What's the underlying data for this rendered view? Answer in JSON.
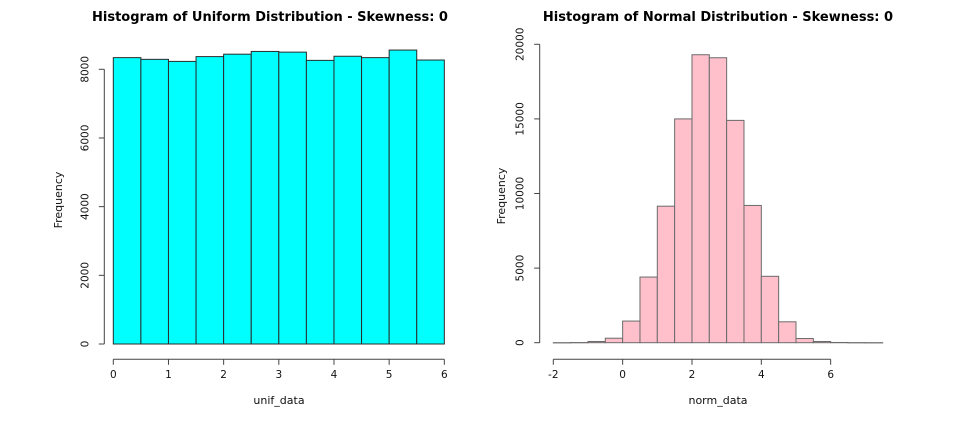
{
  "figure": {
    "background": "#ffffff"
  },
  "chart_data": [
    {
      "type": "bar",
      "subtype": "histogram",
      "title": "Histogram of Uniform Distribution - Skewness: 0",
      "xlabel": "unif_data",
      "ylabel": "Frequency",
      "bar_fill": "#00FFFF",
      "bar_border": "#2b2b2b",
      "bin_start": 0,
      "bin_width": 0.5,
      "values": [
        8340,
        8290,
        8230,
        8370,
        8440,
        8520,
        8500,
        8260,
        8380,
        8340,
        8560,
        8270
      ],
      "xticks": [
        0,
        1,
        2,
        3,
        4,
        5,
        6
      ],
      "yticks": [
        0,
        2000,
        4000,
        6000,
        8000
      ],
      "xlim": [
        0,
        6
      ],
      "ylim": [
        0,
        8560
      ],
      "grid": false,
      "legend": null
    },
    {
      "type": "bar",
      "subtype": "histogram",
      "title": "Histogram of Normal Distribution - Skewness: 0",
      "xlabel": "norm_data",
      "ylabel": "Frequency",
      "bar_fill": "#FFC0CB",
      "bar_border": "#6b6b6b",
      "bin_start": -2,
      "bin_width": 0.5,
      "values": [
        2,
        10,
        80,
        300,
        1450,
        4400,
        9150,
        15000,
        19300,
        19100,
        14900,
        9200,
        4450,
        1400,
        280,
        80,
        15,
        5,
        2
      ],
      "xticks": [
        -2,
        0,
        2,
        4,
        6
      ],
      "yticks": [
        0,
        5000,
        10000,
        15000,
        20000
      ],
      "xlim": [
        -2,
        7.5
      ],
      "ylim": [
        0,
        19300
      ],
      "grid": false,
      "legend": null
    }
  ]
}
